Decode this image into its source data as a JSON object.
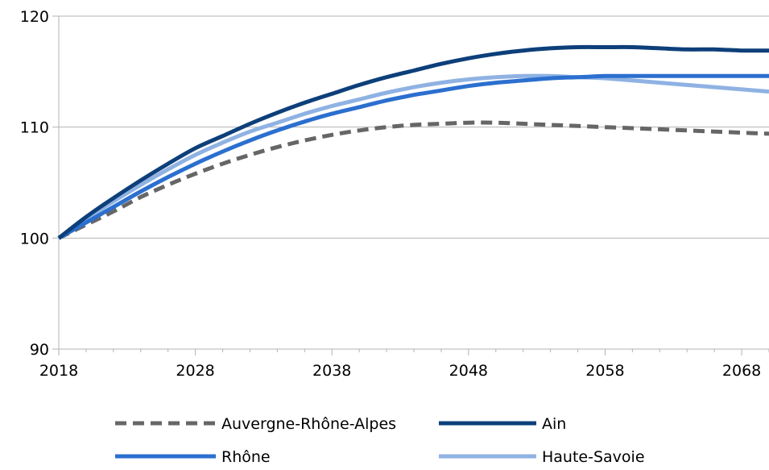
{
  "chart_data": {
    "type": "line",
    "title": "",
    "xlabel": "",
    "ylabel": "",
    "xlim": [
      2018,
      2070
    ],
    "ylim": [
      90,
      120
    ],
    "x_ticks": [
      2018,
      2028,
      2038,
      2048,
      2058,
      2068
    ],
    "y_ticks": [
      90,
      100,
      110,
      120
    ],
    "grid": "horizontal",
    "legend_position": "bottom",
    "x": [
      2018,
      2020,
      2022,
      2024,
      2026,
      2028,
      2030,
      2032,
      2034,
      2036,
      2038,
      2040,
      2042,
      2044,
      2046,
      2048,
      2050,
      2052,
      2054,
      2056,
      2058,
      2060,
      2062,
      2064,
      2066,
      2068,
      2070
    ],
    "series": [
      {
        "name": "Auvergne-Rhône-Alpes",
        "color": "#666666",
        "dashed": true,
        "values": [
          100,
          101.2,
          102.4,
          103.7,
          104.8,
          105.8,
          106.7,
          107.5,
          108.2,
          108.8,
          109.3,
          109.7,
          110.0,
          110.2,
          110.3,
          110.4,
          110.4,
          110.3,
          110.2,
          110.1,
          110.0,
          109.9,
          109.8,
          109.7,
          109.6,
          109.5,
          109.4
        ]
      },
      {
        "name": "Ain",
        "color": "#0d3f7a",
        "dashed": false,
        "values": [
          100,
          101.9,
          103.6,
          105.2,
          106.7,
          108.1,
          109.2,
          110.3,
          111.3,
          112.2,
          113.0,
          113.8,
          114.5,
          115.1,
          115.7,
          116.2,
          116.6,
          116.9,
          117.1,
          117.2,
          117.2,
          117.2,
          117.1,
          117.0,
          117.0,
          116.9,
          116.9
        ]
      },
      {
        "name": "Rhône",
        "color": "#2b6fcf",
        "dashed": false,
        "values": [
          100,
          101.4,
          102.8,
          104.2,
          105.5,
          106.7,
          107.8,
          108.8,
          109.7,
          110.5,
          111.2,
          111.8,
          112.4,
          112.9,
          113.3,
          113.7,
          114.0,
          114.2,
          114.4,
          114.5,
          114.6,
          114.6,
          114.6,
          114.6,
          114.6,
          114.6,
          114.6
        ]
      },
      {
        "name": "Haute-Savoie",
        "color": "#8fb2e3",
        "dashed": false,
        "values": [
          100,
          101.7,
          103.3,
          104.8,
          106.2,
          107.5,
          108.6,
          109.6,
          110.4,
          111.2,
          111.9,
          112.5,
          113.1,
          113.6,
          114.0,
          114.3,
          114.5,
          114.6,
          114.6,
          114.5,
          114.4,
          114.2,
          114.0,
          113.8,
          113.6,
          113.4,
          113.2
        ]
      }
    ]
  }
}
